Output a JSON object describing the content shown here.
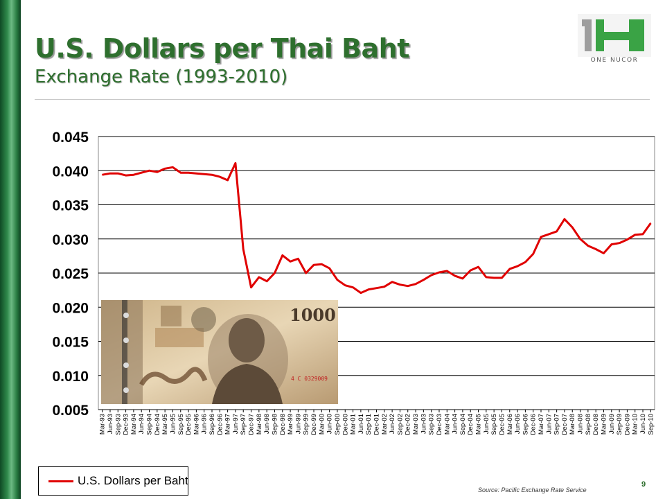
{
  "slide": {
    "title": "U.S. Dollars per Thai Baht",
    "subtitle": "Exchange Rate (1993-2010)",
    "page_number": "9",
    "source": "Source: Pacific Exchange Rate Service",
    "logo_text": "ONE NUCOR",
    "banknote_value": "1000",
    "banknote_serial": "4 C 0329009"
  },
  "colors": {
    "title_green": "#2e6f2e",
    "series_red": "#e00000",
    "logo_green": "#4caf50"
  },
  "chart_data": {
    "type": "line",
    "title": "",
    "xlabel": "",
    "ylabel": "",
    "ylim": [
      0.005,
      0.045
    ],
    "yticks": [
      "0.045",
      "0.040",
      "0.035",
      "0.030",
      "0.025",
      "0.020",
      "0.015",
      "0.010",
      "0.005"
    ],
    "grid": true,
    "legend_position": "bottom-left",
    "categories": [
      "Mar-93",
      "Jun-93",
      "Sep-93",
      "Dec-93",
      "Mar-94",
      "Jun-94",
      "Sep-94",
      "Dec-94",
      "Mar-95",
      "Jun-95",
      "Sep-95",
      "Dec-95",
      "Mar-96",
      "Jun-96",
      "Sep-96",
      "Dec-96",
      "Mar-97",
      "Jun-97",
      "Sep-97",
      "Dec-97",
      "Mar-98",
      "Jun-98",
      "Sep-98",
      "Dec-98",
      "Mar-99",
      "Jun-99",
      "Sep-99",
      "Dec-99",
      "Mar-00",
      "Jun-00",
      "Sep-00",
      "Dec-00",
      "Mar-01",
      "Jun-01",
      "Sep-01",
      "Dec-01",
      "Mar-02",
      "Jun-02",
      "Sep-02",
      "Dec-02",
      "Mar-03",
      "Jun-03",
      "Sep-03",
      "Dec-03",
      "Mar-04",
      "Jun-04",
      "Sep-04",
      "Dec-04",
      "Mar-05",
      "Jun-05",
      "Sep-05",
      "Dec-05",
      "Mar-06",
      "Jun-06",
      "Sep-06",
      "Dec-06",
      "Mar-07",
      "Jun-07",
      "Sep-07",
      "Dec-07",
      "Mar-08",
      "Jun-08",
      "Sep-08",
      "Dec-08",
      "Mar-09",
      "Jun-09",
      "Sep-09",
      "Dec-09",
      "Mar-10",
      "Jun-10",
      "Sep-10"
    ],
    "series": [
      {
        "name": "U.S. Dollars per Baht",
        "color": "#e00000",
        "values": [
          0.0394,
          0.0396,
          0.0396,
          0.0393,
          0.0394,
          0.0397,
          0.04,
          0.0398,
          0.0403,
          0.0405,
          0.0397,
          0.0397,
          0.0396,
          0.0395,
          0.0394,
          0.0391,
          0.0386,
          0.0411,
          0.0285,
          0.0229,
          0.0244,
          0.0238,
          0.025,
          0.0276,
          0.0267,
          0.0271,
          0.025,
          0.0262,
          0.0263,
          0.0257,
          0.024,
          0.0232,
          0.0229,
          0.0221,
          0.0226,
          0.0228,
          0.023,
          0.0237,
          0.0233,
          0.0231,
          0.0234,
          0.024,
          0.0247,
          0.0251,
          0.0253,
          0.0246,
          0.0242,
          0.0254,
          0.0259,
          0.0244,
          0.0243,
          0.0243,
          0.0256,
          0.026,
          0.0266,
          0.0278,
          0.0303,
          0.0307,
          0.0311,
          0.0329,
          0.0317,
          0.03,
          0.029,
          0.0285,
          0.0279,
          0.0292,
          0.0294,
          0.0299,
          0.0306,
          0.0307,
          0.0323
        ]
      }
    ]
  }
}
